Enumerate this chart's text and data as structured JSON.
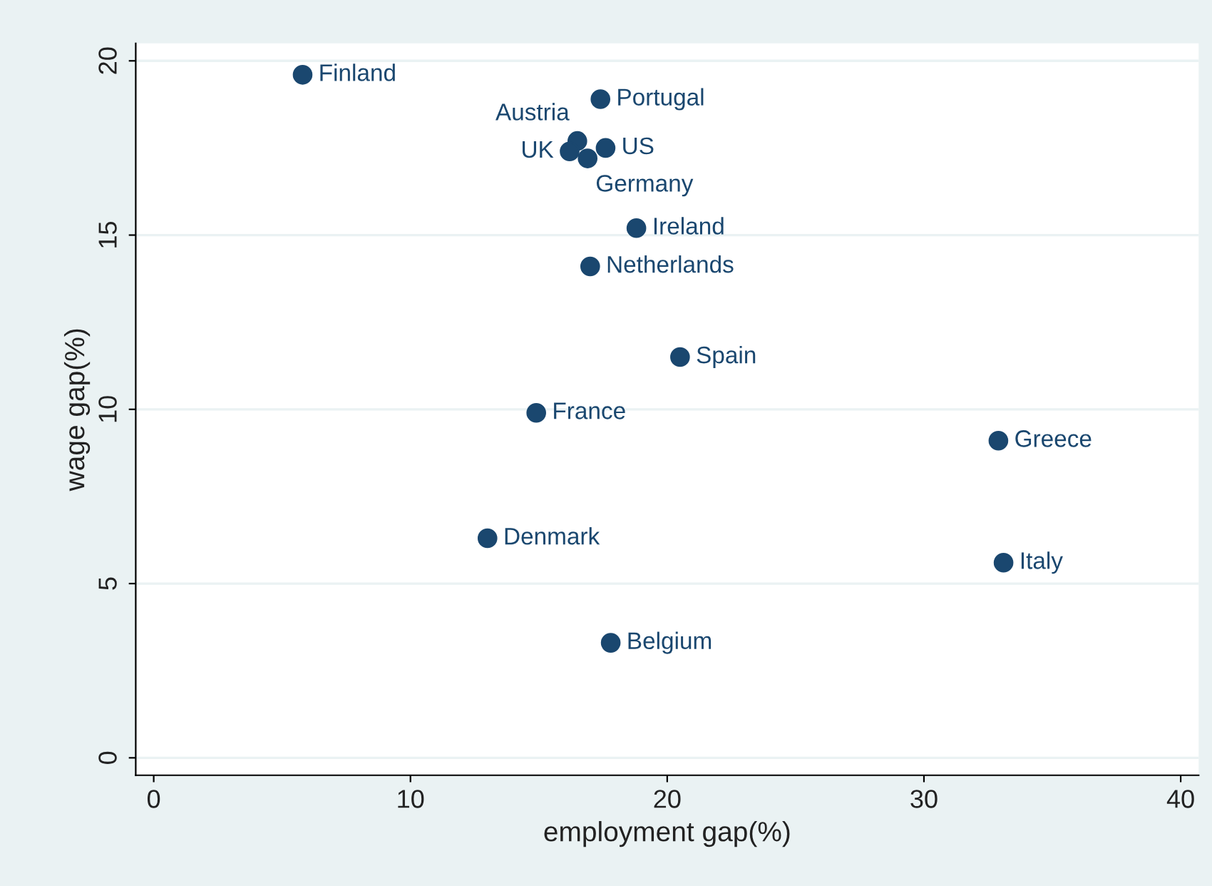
{
  "chart_data": {
    "type": "scatter",
    "xlabel": "employment gap(%)",
    "ylabel": "wage gap(%)",
    "xlim": [
      -0.7,
      40.7
    ],
    "ylim": [
      -0.5,
      20.5
    ],
    "xticks": [
      0,
      10,
      20,
      30,
      40
    ],
    "yticks": [
      0,
      5,
      10,
      15,
      20
    ],
    "grid": "y",
    "marker": "circle",
    "series": [
      {
        "name": "Finland",
        "color": "#1a476f",
        "x": [
          5.8
        ],
        "values": [
          19.6
        ]
      },
      {
        "name": "Portugal",
        "color": "#1a476f",
        "x": [
          17.4
        ],
        "values": [
          18.9
        ]
      },
      {
        "name": "Austria",
        "color": "#1a476f",
        "x": [
          16.5
        ],
        "values": [
          17.7
        ]
      },
      {
        "name": "UK",
        "color": "#1a476f",
        "x": [
          16.2
        ],
        "values": [
          17.4
        ]
      },
      {
        "name": "US",
        "color": "#1a476f",
        "x": [
          17.6
        ],
        "values": [
          17.5
        ]
      },
      {
        "name": "Germany",
        "color": "#1a476f",
        "x": [
          16.9
        ],
        "values": [
          17.2
        ]
      },
      {
        "name": "Ireland",
        "color": "#1a476f",
        "x": [
          18.8
        ],
        "values": [
          15.2
        ]
      },
      {
        "name": "Netherlands",
        "color": "#1a476f",
        "x": [
          17.0
        ],
        "values": [
          14.1
        ]
      },
      {
        "name": "Spain",
        "color": "#1a476f",
        "x": [
          20.5
        ],
        "values": [
          11.5
        ]
      },
      {
        "name": "France",
        "color": "#1a476f",
        "x": [
          14.9
        ],
        "values": [
          9.9
        ]
      },
      {
        "name": "Greece",
        "color": "#1a476f",
        "x": [
          32.9
        ],
        "values": [
          9.1
        ]
      },
      {
        "name": "Denmark",
        "color": "#1a476f",
        "x": [
          13.0
        ],
        "values": [
          6.3
        ]
      },
      {
        "name": "Italy",
        "color": "#1a476f",
        "x": [
          33.1
        ],
        "values": [
          5.6
        ]
      },
      {
        "name": "Belgium",
        "color": "#1a476f",
        "x": [
          17.8
        ],
        "values": [
          3.3
        ]
      }
    ]
  }
}
